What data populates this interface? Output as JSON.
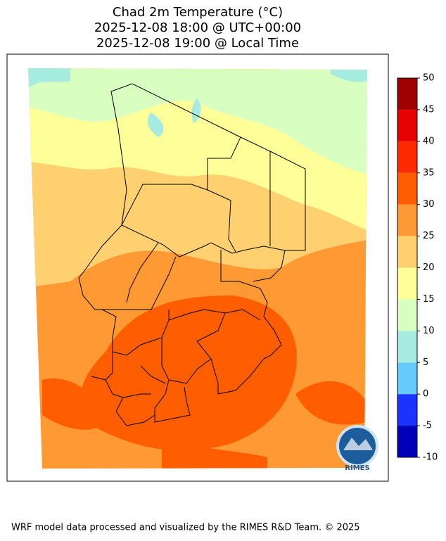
{
  "map": {
    "title": [
      "Chad 2m Temperature (°C)",
      "2025-12-08 18:00 @ UTC+00:00",
      "2025-12-08 19:00 @ Local Time"
    ],
    "colorbar": {
      "levels": [
        -10,
        -5,
        0,
        5,
        10,
        15,
        20,
        25,
        30,
        35,
        40,
        45,
        50
      ],
      "colors": [
        "#0000b8",
        "#1a33ff",
        "#66ccff",
        "#a5ebe0",
        "#d9ffc0",
        "#ffff99",
        "#ffd070",
        "#ff9933",
        "#ff5e00",
        "#ff2a00",
        "#e60000",
        "#a00000"
      ]
    },
    "logo_text": "RIMES",
    "footer": "WRF model data processed and visualized by the RIMES R&D Team. © 2025"
  }
}
